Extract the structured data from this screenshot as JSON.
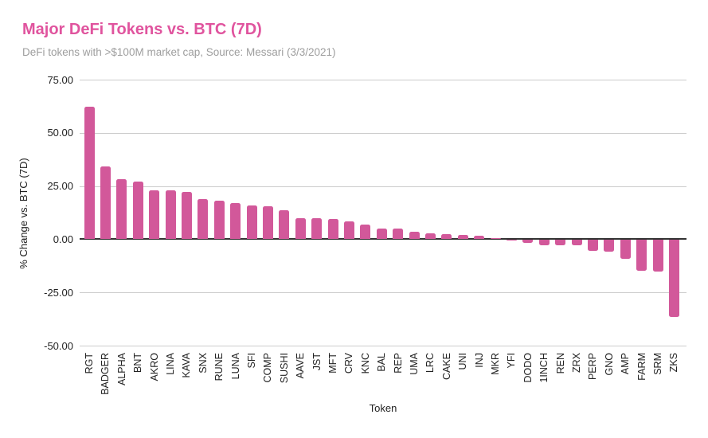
{
  "header": {
    "title": "Major DeFi Tokens vs. BTC (7D)",
    "subtitle": "DeFi tokens with >$100M market cap, Source: Messari (3/3/2021)"
  },
  "chart_data": {
    "type": "bar",
    "title": "Major DeFi Tokens vs. BTC (7D)",
    "subtitle": "DeFi tokens with >$100M market cap, Source: Messari (3/3/2021)",
    "xlabel": "Token",
    "ylabel": "% Change vs. BTC (7D)",
    "ylim": [
      -50,
      75
    ],
    "ytick_values": [
      75,
      50,
      25,
      0,
      -25,
      -50
    ],
    "ytick_labels": [
      "75.00",
      "50.00",
      "25.00",
      "0.00",
      "-25.00",
      "-50.00"
    ],
    "grid": true,
    "legend_position": "none",
    "bar_color": "#D2589A",
    "categories": [
      "RGT",
      "BADGER",
      "ALPHA",
      "BNT",
      "AKRO",
      "LINA",
      "KAVA",
      "SNX",
      "RUNE",
      "LUNA",
      "SFI",
      "COMP",
      "SUSHI",
      "AAVE",
      "JST",
      "MFT",
      "CRV",
      "KNC",
      "BAL",
      "REP",
      "UMA",
      "LRC",
      "CAKE",
      "UNI",
      "INJ",
      "MKR",
      "YFI",
      "DODO",
      "1INCH",
      "REN",
      "ZRX",
      "PERP",
      "GNO",
      "AMP",
      "FARM",
      "SRM",
      "ZKS"
    ],
    "values": [
      62.3,
      34.2,
      28.4,
      27.0,
      23.0,
      22.8,
      22.1,
      18.9,
      18.1,
      16.9,
      16.0,
      15.4,
      13.5,
      10.0,
      9.8,
      9.5,
      8.5,
      6.7,
      5.0,
      4.9,
      3.7,
      2.6,
      2.5,
      2.2,
      1.5,
      0.7,
      -0.3,
      -1.5,
      -2.4,
      -2.5,
      -2.5,
      -5.2,
      -5.6,
      -9.0,
      -14.6,
      -14.8,
      -36.0
    ]
  },
  "colors": {
    "title_text": "#E0549E",
    "subtitle_text": "#9E9E9E",
    "bar_fill": "#D2589A",
    "gridline": "#CCCCCC",
    "zero_line": "#333333",
    "tick_text": "#222222"
  }
}
